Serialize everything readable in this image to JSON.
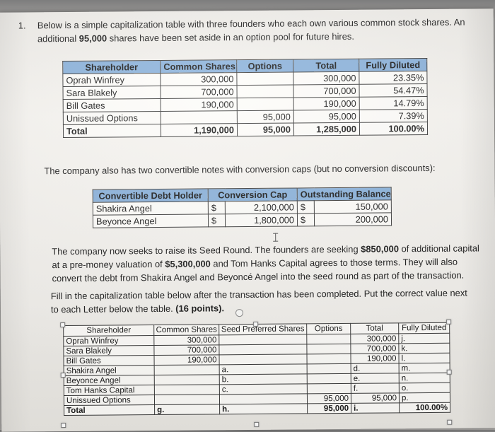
{
  "colors": {
    "header_fill": "#8ab1da"
  },
  "question": {
    "number": "1.",
    "intro": [
      "Below is a simple capitalization table with three founders who each own various common stock shares.  An additional ",
      "95,000",
      " shares have been set aside in an option pool for future hires."
    ],
    "notes_intro": "The company also has two convertible notes with conversion caps (but no conversion discounts):",
    "seed_round": [
      "The company now seeks to raise its Seed Round.  The founders are seeking ",
      "$850,000",
      " of additional capital at a pre-money valuation of ",
      "$5,300,000",
      " and Tom Hanks Capital agrees to those terms.  They will also convert the debt from Shakira Angel and Beyoncé Angel into the seed round as part of the transaction."
    ],
    "instructions": [
      "Fill in the capitalization table below after the transaction has been completed.  Put the correct value next to each Letter below the table.  ",
      "(16 points)."
    ]
  },
  "cap_table": {
    "headers": [
      "Shareholder",
      "Common Shares",
      "Options",
      "Total",
      "Fully Diluted"
    ],
    "rows": [
      [
        "Oprah Winfrey",
        "300,000",
        "",
        "300,000",
        "23.35%"
      ],
      [
        "Sara Blakely",
        "700,000",
        "",
        "700,000",
        "54.47%"
      ],
      [
        "Bill Gates",
        "190,000",
        "",
        "190,000",
        "14.79%"
      ],
      [
        "Unissued Options",
        "",
        "95,000",
        "95,000",
        "7.39%"
      ],
      [
        "Total",
        "1,190,000",
        "95,000",
        "1,285,000",
        "100.00%"
      ]
    ]
  },
  "notes_table": {
    "headers": [
      "Convertible Debt Holder",
      "Conversion Cap",
      "Outstanding Balance"
    ],
    "rows": [
      [
        "Shakira Angel",
        "$",
        "2,100,000",
        "$",
        "150,000"
      ],
      [
        "Beyonce Angel",
        "$",
        "1,800,000",
        "$",
        "200,000"
      ]
    ]
  },
  "answer_table": {
    "headers": [
      "Shareholder",
      "Common Shares",
      "Seed Preferred Shares",
      "Options",
      "Total",
      "Fully Diluted"
    ],
    "rows": [
      [
        "Oprah Winfrey",
        "300,000",
        "",
        "",
        "300,000",
        "j."
      ],
      [
        "Sara Blakely",
        "700,000",
        "",
        "",
        "700,000",
        "k."
      ],
      [
        "Bill Gates",
        "190,000",
        "",
        "",
        "190,000",
        "l."
      ],
      [
        "Shakira Angel",
        "",
        "a.",
        "",
        "d.",
        "m."
      ],
      [
        "Beyonce Angel",
        "",
        "b.",
        "",
        "e.",
        "n."
      ],
      [
        "Tom Hanks Capital",
        "",
        "c.",
        "",
        "f.",
        "o."
      ],
      [
        "Unissued Options",
        "",
        "",
        "95,000",
        "95,000",
        "p."
      ],
      [
        "Total",
        "g.",
        "h.",
        "95,000",
        "i.",
        "100.00%"
      ]
    ]
  }
}
